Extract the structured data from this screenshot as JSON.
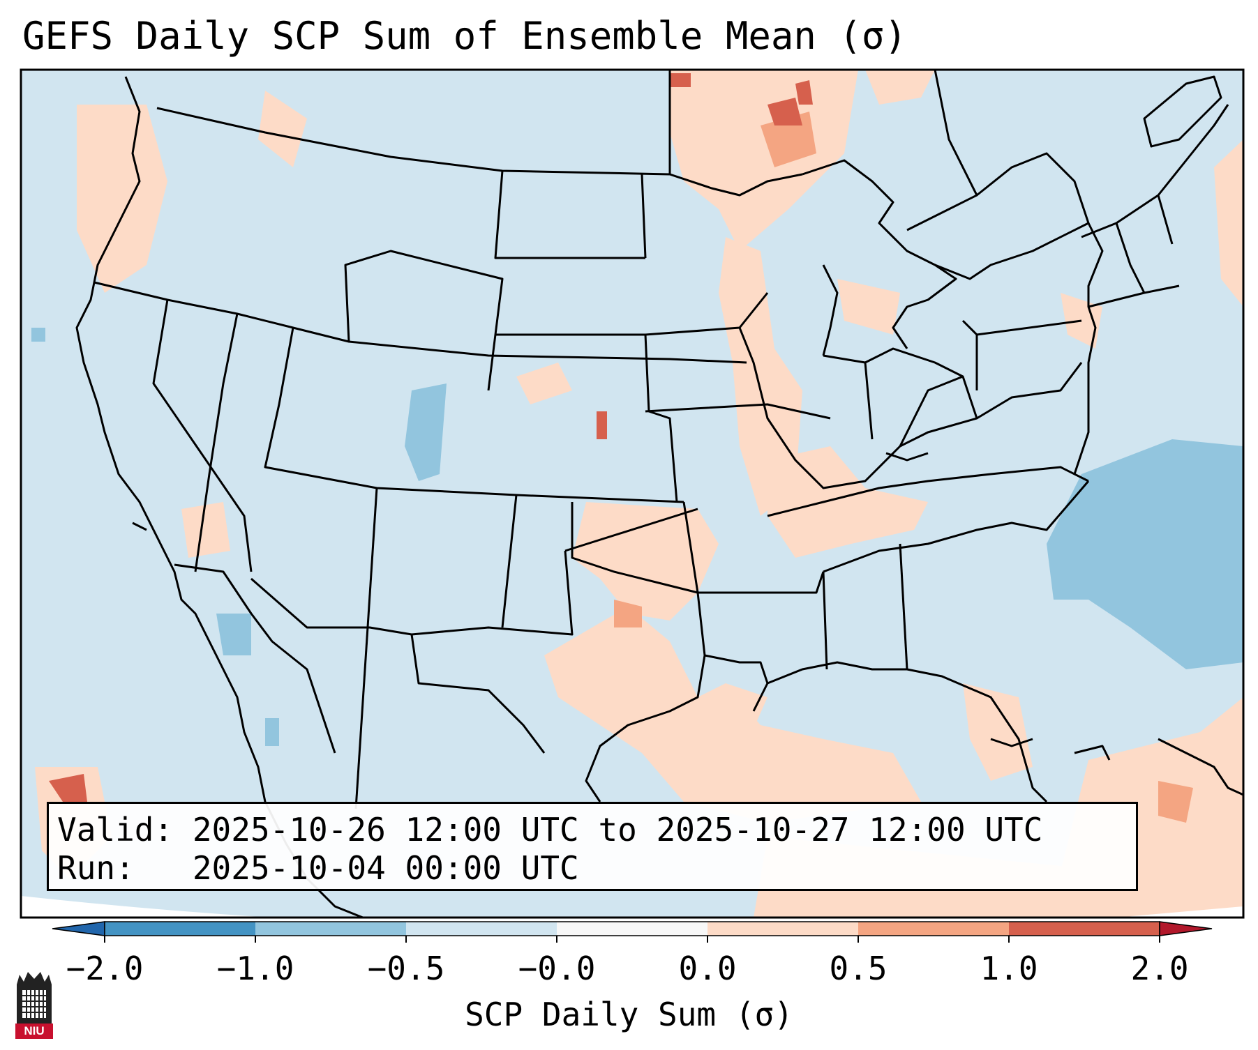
{
  "title": "GEFS Daily SCP Sum of Ensemble Mean (σ)",
  "info": {
    "valid_line": "Valid: 2025-10-26 12:00 UTC to 2025-10-27 12:00 UTC",
    "run_line": "Run:   2025-10-04 00:00 UTC"
  },
  "colorbar": {
    "label": "SCP Daily Sum (σ)",
    "ticks": [
      "−2.0",
      "−1.0",
      "−0.5",
      "−0.0",
      "0.0",
      "0.5",
      "1.0",
      "2.0"
    ],
    "bins": [
      {
        "from": -2.0,
        "to": -1.0,
        "color": "#4393c3"
      },
      {
        "from": -1.0,
        "to": -0.5,
        "color": "#92c5de"
      },
      {
        "from": -0.5,
        "to": -0.0,
        "color": "#d1e5f0"
      },
      {
        "from": -0.0,
        "to": 0.0,
        "color": "#f7f7f7"
      },
      {
        "from": 0.0,
        "to": 0.5,
        "color": "#fddbc7"
      },
      {
        "from": 0.5,
        "to": 1.0,
        "color": "#f4a582"
      },
      {
        "from": 1.0,
        "to": 2.0,
        "color": "#d6604d"
      }
    ],
    "under_color": "#2166ac",
    "over_color": "#b2182b"
  },
  "map": {
    "background_color": "#d1e5f0",
    "outside_color": "#ffffff",
    "line_color": "#000000"
  },
  "logo": {
    "text": "NIU",
    "icon": "niu-castle-logo-icon"
  }
}
